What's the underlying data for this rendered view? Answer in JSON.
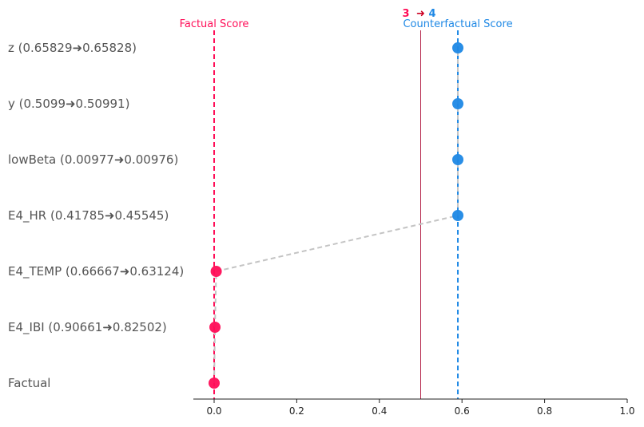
{
  "chart_data": {
    "type": "scatter",
    "rows": [
      {
        "label": "z (0.65829➜0.65828)",
        "score": 0.59,
        "color": "#1e88e5"
      },
      {
        "label": "y (0.5099➜0.50991)",
        "score": 0.59,
        "color": "#1e88e5"
      },
      {
        "label": "lowBeta (0.00977➜0.00976)",
        "score": 0.59,
        "color": "#1e88e5"
      },
      {
        "label": "E4_HR (0.41785➜0.45545)",
        "score": 0.59,
        "color": "#1e88e5"
      },
      {
        "label": "E4_TEMP (0.66667➜0.63124)",
        "score": 0.005,
        "color": "#ff0d57"
      },
      {
        "label": "E4_IBI (0.90661➜0.82502)",
        "score": 0.002,
        "color": "#ff0d57"
      },
      {
        "label": "Factual",
        "score": 0.0,
        "color": "#ff0d57"
      }
    ],
    "factual_score": 0.0,
    "counterfactual_score": 0.59,
    "threshold": 0.5,
    "factual_score_label": "Factual Score",
    "counterfactual_score_label": "Counterfactual Score",
    "class_from": "3",
    "class_arrow": "➜",
    "class_to": "4",
    "xlim": [
      -0.05,
      1.0
    ],
    "xticks": [
      "0.0",
      "0.2",
      "0.4",
      "0.6",
      "0.8",
      "1.0"
    ],
    "colors": {
      "factual": "#ff0d57",
      "counterfactual": "#1e88e5",
      "threshold": "#b5254a",
      "arrow": "#cc0022",
      "connector": "#c4c4c4"
    }
  }
}
